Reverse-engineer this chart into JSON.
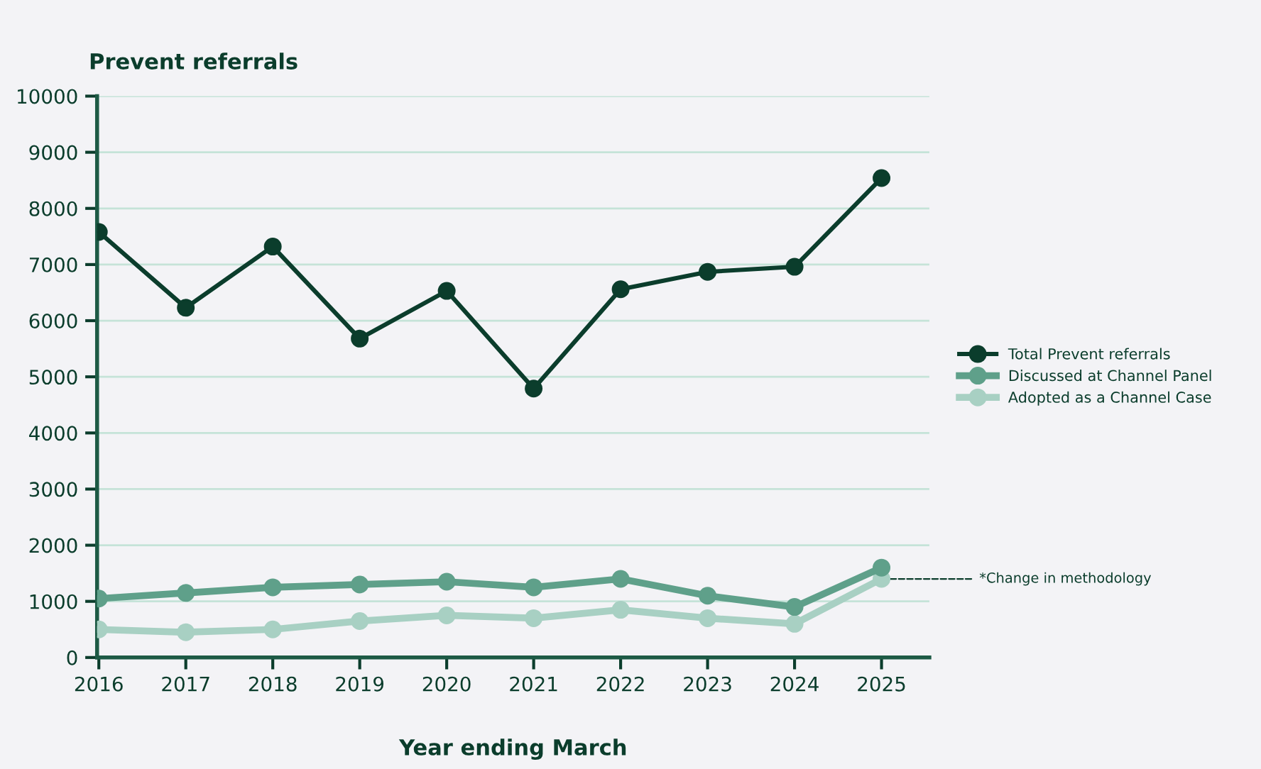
{
  "chart_data": {
    "type": "line",
    "ylabel": "Prevent referrals",
    "xlabel": "Year ending March",
    "categories": [
      "2016",
      "2017",
      "2018",
      "2019",
      "2020",
      "2021",
      "2022",
      "2023",
      "2024",
      "2025"
    ],
    "series": [
      {
        "name": "Total Prevent referrals",
        "color": "#0b3d2c",
        "values": [
          7580,
          6230,
          7320,
          5680,
          6530,
          4790,
          6560,
          6870,
          6960,
          8540
        ]
      },
      {
        "name": "Discussed at Channel Panel",
        "color": "#5fa08a",
        "values": [
          1050,
          1150,
          1250,
          1300,
          1350,
          1250,
          1400,
          1100,
          900,
          1600
        ]
      },
      {
        "name": "Adopted as a Channel Case",
        "color": "#a8d0c3",
        "values": [
          500,
          450,
          500,
          650,
          750,
          700,
          850,
          700,
          600,
          1400
        ]
      }
    ],
    "ylim": [
      0,
      10000
    ],
    "yticks": [
      0,
      1000,
      2000,
      3000,
      4000,
      5000,
      6000,
      7000,
      8000,
      9000,
      10000
    ],
    "grid": "y",
    "legend": "right",
    "marker": "circle",
    "line_style": "solid",
    "annotations": [
      {
        "text": "*Change in methodology",
        "x": "2025",
        "y": 1400
      }
    ]
  }
}
